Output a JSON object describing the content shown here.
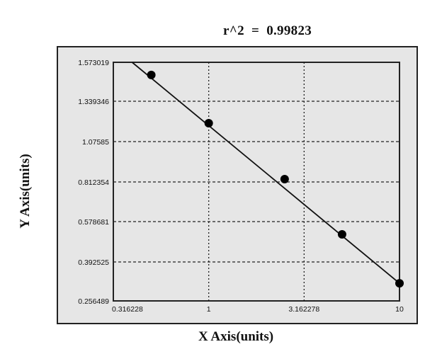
{
  "chart_data": {
    "type": "scatter",
    "title": "",
    "annotation": "r^2  =  0.99823",
    "r_squared": 0.99823,
    "xlabel": "X Axis(units)",
    "ylabel": "Y Axis(units)",
    "xscale": "log",
    "xlim": [
      0.316228,
      10
    ],
    "ylim": [
      0.256489,
      1.573019
    ],
    "x_ticks": [
      "0.316228",
      "1",
      "3.162278",
      "10"
    ],
    "y_ticks": [
      "1.573019",
      "1.339346",
      "1.07585",
      "0.812354",
      "0.578681",
      "0.392525",
      "0.256489"
    ],
    "grid": true,
    "legend": null,
    "series": [
      {
        "name": "standards",
        "marker": "filled-circle",
        "x": [
          0.5,
          1,
          2.5,
          5,
          10
        ],
        "y": [
          1.497,
          1.196,
          0.831,
          0.52,
          0.318
        ]
      },
      {
        "name": "fit-line",
        "style": "solid-line",
        "x": [
          0.39,
          10
        ],
        "y": [
          1.573019,
          0.318
        ]
      }
    ]
  },
  "labels": {
    "r2": "r^2  =  0.99823",
    "xlabel": "X Axis(units)",
    "ylabel": "Y Axis(units)"
  },
  "colors": {
    "plot_bg": "#e6e6e6",
    "line": "#111111",
    "marker": "#000000"
  }
}
